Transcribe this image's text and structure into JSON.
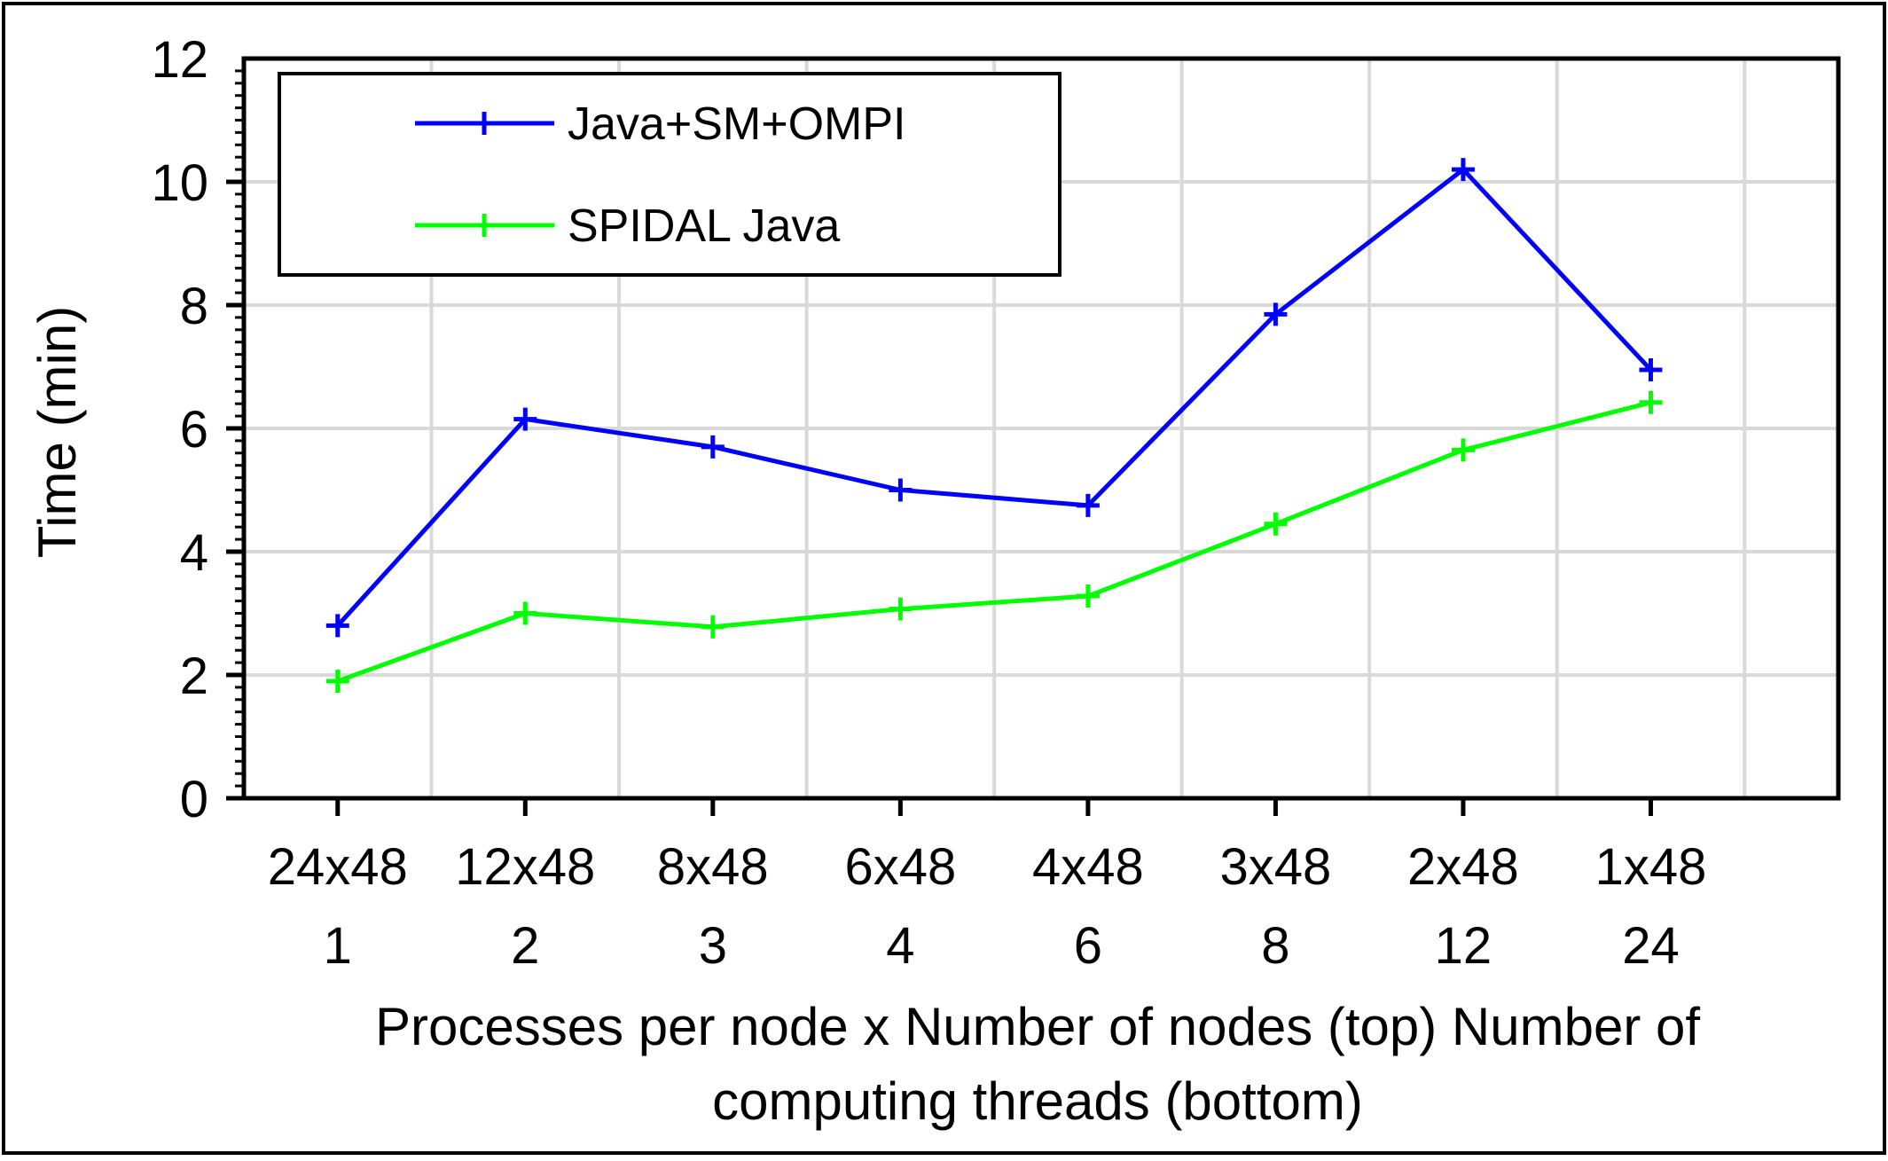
{
  "chart_data": {
    "type": "line",
    "title": "",
    "xlabel_lines": [
      "Processes per node x Number of nodes (top) Number of",
      "computing threads (bottom)"
    ],
    "ylabel": "Time (min)",
    "ylim": [
      0,
      12
    ],
    "yticks": [
      "0",
      "2",
      "4",
      "6",
      "8",
      "10",
      "12"
    ],
    "categories_top": [
      "24x48",
      "12x48",
      "8x48",
      "6x48",
      "4x48",
      "3x48",
      "2x48",
      "1x48"
    ],
    "categories_bottom": [
      "1",
      "2",
      "3",
      "4",
      "6",
      "8",
      "12",
      "24"
    ],
    "grid": true,
    "legend_position": "top-left",
    "series": [
      {
        "name": "Java+SM+OMPI",
        "color": "#0000ff",
        "marker": "plus",
        "values": [
          2.8,
          6.15,
          5.7,
          5.0,
          4.75,
          7.85,
          10.2,
          6.95
        ]
      },
      {
        "name": "SPIDAL Java",
        "color": "#00ff00",
        "marker": "plus",
        "values": [
          1.9,
          3.0,
          2.78,
          3.07,
          3.28,
          4.45,
          5.65,
          6.42
        ]
      }
    ]
  }
}
